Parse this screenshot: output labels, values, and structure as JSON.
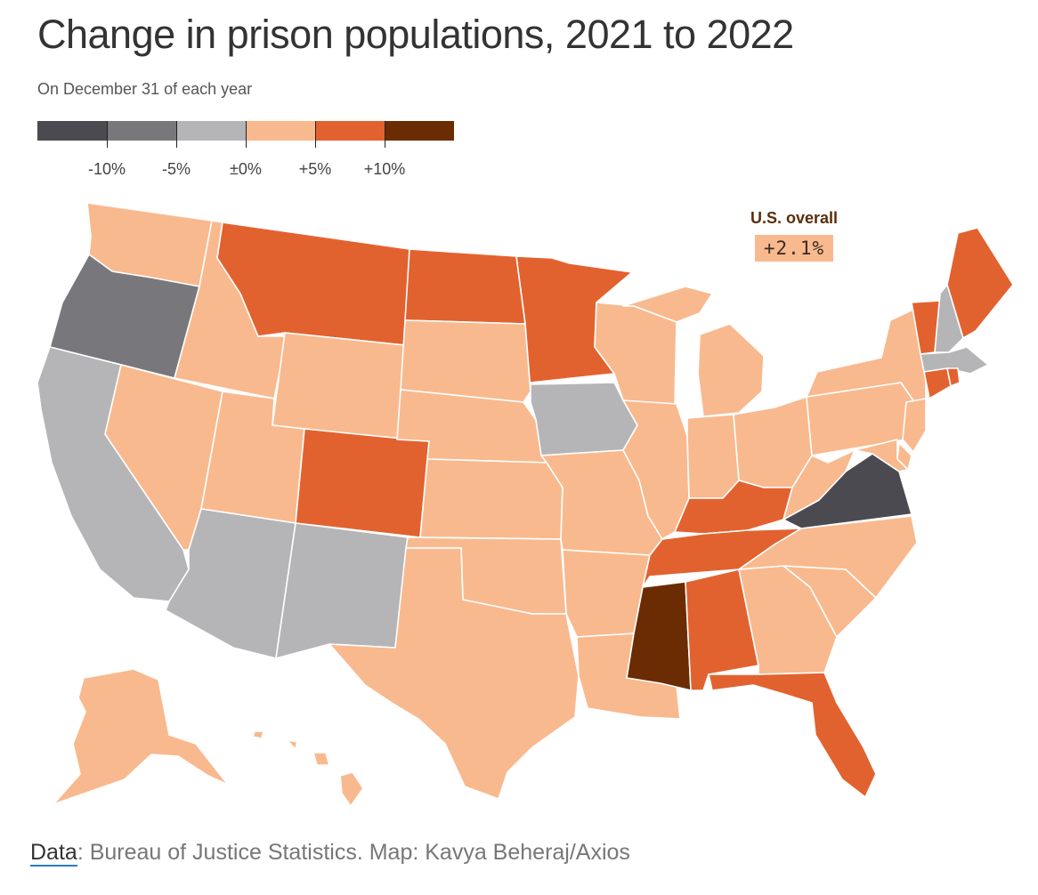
{
  "title": "Change in prison populations, 2021 to 2022",
  "subtitle": "On December 31 of each year",
  "legend": {
    "colors": [
      "#4a4a50",
      "#77777c",
      "#b5b5b8",
      "#f9b98e",
      "#e2622f",
      "#6b2c03"
    ],
    "labels": [
      "-10%",
      "-5%",
      "±0%",
      "+5%",
      "+10%"
    ]
  },
  "overall": {
    "label": "U.S. overall",
    "value": "+2.1%"
  },
  "footer": {
    "data_label": "Data",
    "source_text": ": Bureau of Justice Statistics. Map: Kavya Beheraj/Axios"
  },
  "map_data": {
    "type": "choropleth",
    "states": [
      {
        "name": "Washington",
        "bin": "0 to +5%"
      },
      {
        "name": "Oregon",
        "bin": "-10% to -5%"
      },
      {
        "name": "California",
        "bin": "-5% to 0"
      },
      {
        "name": "Nevada",
        "bin": "0 to +5%"
      },
      {
        "name": "Idaho",
        "bin": "0 to +5%"
      },
      {
        "name": "Montana",
        "bin": "+5% to +10%"
      },
      {
        "name": "Wyoming",
        "bin": "0 to +5%"
      },
      {
        "name": "Utah",
        "bin": "0 to +5%"
      },
      {
        "name": "Colorado",
        "bin": "+5% to +10%"
      },
      {
        "name": "Arizona",
        "bin": "-5% to 0"
      },
      {
        "name": "New Mexico",
        "bin": "-5% to 0"
      },
      {
        "name": "North Dakota",
        "bin": "+5% to +10%"
      },
      {
        "name": "South Dakota",
        "bin": "0 to +5%"
      },
      {
        "name": "Nebraska",
        "bin": "0 to +5%"
      },
      {
        "name": "Kansas",
        "bin": "0 to +5%"
      },
      {
        "name": "Oklahoma",
        "bin": "0 to +5%"
      },
      {
        "name": "Texas",
        "bin": "0 to +5%"
      },
      {
        "name": "Minnesota",
        "bin": "+5% to +10%"
      },
      {
        "name": "Iowa",
        "bin": "-5% to 0"
      },
      {
        "name": "Missouri",
        "bin": "0 to +5%"
      },
      {
        "name": "Arkansas",
        "bin": "0 to +5%"
      },
      {
        "name": "Louisiana",
        "bin": "0 to +5%"
      },
      {
        "name": "Wisconsin",
        "bin": "0 to +5%"
      },
      {
        "name": "Illinois",
        "bin": "0 to +5%"
      },
      {
        "name": "Michigan",
        "bin": "0 to +5%"
      },
      {
        "name": "Indiana",
        "bin": "0 to +5%"
      },
      {
        "name": "Ohio",
        "bin": "0 to +5%"
      },
      {
        "name": "Kentucky",
        "bin": "+5% to +10%"
      },
      {
        "name": "Tennessee",
        "bin": "+5% to +10%"
      },
      {
        "name": "Mississippi",
        "bin": "above +10%"
      },
      {
        "name": "Alabama",
        "bin": "+5% to +10%"
      },
      {
        "name": "Georgia",
        "bin": "0 to +5%"
      },
      {
        "name": "Florida",
        "bin": "+5% to +10%"
      },
      {
        "name": "South Carolina",
        "bin": "0 to +5%"
      },
      {
        "name": "North Carolina",
        "bin": "0 to +5%"
      },
      {
        "name": "Virginia",
        "bin": "below -10%"
      },
      {
        "name": "West Virginia",
        "bin": "0 to +5%"
      },
      {
        "name": "Pennsylvania",
        "bin": "0 to +5%"
      },
      {
        "name": "New York",
        "bin": "0 to +5%"
      },
      {
        "name": "New Jersey",
        "bin": "0 to +5%"
      },
      {
        "name": "Delaware",
        "bin": "0 to +5%"
      },
      {
        "name": "Maryland",
        "bin": "0 to +5%"
      },
      {
        "name": "Vermont",
        "bin": "+5% to +10%"
      },
      {
        "name": "New Hampshire",
        "bin": "-5% to 0"
      },
      {
        "name": "Maine",
        "bin": "+5% to +10%"
      },
      {
        "name": "Massachusetts",
        "bin": "-5% to 0"
      },
      {
        "name": "Connecticut",
        "bin": "+5% to +10%"
      },
      {
        "name": "Rhode Island",
        "bin": "+5% to +10%"
      },
      {
        "name": "Alaska",
        "bin": "0 to +5%"
      },
      {
        "name": "Hawaii",
        "bin": "0 to +5%"
      }
    ]
  }
}
